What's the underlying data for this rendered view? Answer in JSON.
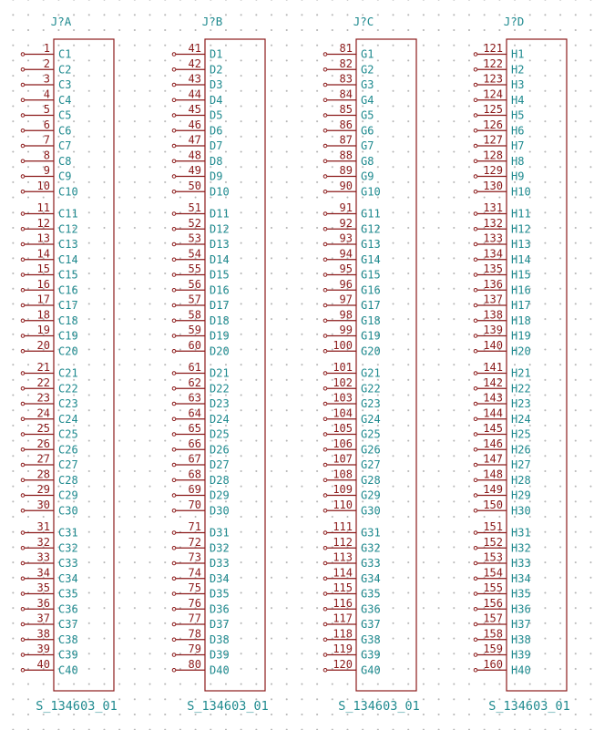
{
  "connectors": [
    {
      "reference": "J?A",
      "value": "S_134603_01",
      "pins": [
        {
          "num": "1",
          "name": "C1"
        },
        {
          "num": "2",
          "name": "C2"
        },
        {
          "num": "3",
          "name": "C3"
        },
        {
          "num": "4",
          "name": "C4"
        },
        {
          "num": "5",
          "name": "C5"
        },
        {
          "num": "6",
          "name": "C6"
        },
        {
          "num": "7",
          "name": "C7"
        },
        {
          "num": "8",
          "name": "C8"
        },
        {
          "num": "9",
          "name": "C9"
        },
        {
          "num": "10",
          "name": "C10"
        },
        {
          "num": "11",
          "name": "C11"
        },
        {
          "num": "12",
          "name": "C12"
        },
        {
          "num": "13",
          "name": "C13"
        },
        {
          "num": "14",
          "name": "C14"
        },
        {
          "num": "15",
          "name": "C15"
        },
        {
          "num": "16",
          "name": "C16"
        },
        {
          "num": "17",
          "name": "C17"
        },
        {
          "num": "18",
          "name": "C18"
        },
        {
          "num": "19",
          "name": "C19"
        },
        {
          "num": "20",
          "name": "C20"
        },
        {
          "num": "21",
          "name": "C21"
        },
        {
          "num": "22",
          "name": "C22"
        },
        {
          "num": "23",
          "name": "C23"
        },
        {
          "num": "24",
          "name": "C24"
        },
        {
          "num": "25",
          "name": "C25"
        },
        {
          "num": "26",
          "name": "C26"
        },
        {
          "num": "27",
          "name": "C27"
        },
        {
          "num": "28",
          "name": "C28"
        },
        {
          "num": "29",
          "name": "C29"
        },
        {
          "num": "30",
          "name": "C30"
        },
        {
          "num": "31",
          "name": "C31"
        },
        {
          "num": "32",
          "name": "C32"
        },
        {
          "num": "33",
          "name": "C33"
        },
        {
          "num": "34",
          "name": "C34"
        },
        {
          "num": "35",
          "name": "C35"
        },
        {
          "num": "36",
          "name": "C36"
        },
        {
          "num": "37",
          "name": "C37"
        },
        {
          "num": "38",
          "name": "C38"
        },
        {
          "num": "39",
          "name": "C39"
        },
        {
          "num": "40",
          "name": "C40"
        }
      ]
    },
    {
      "reference": "J?B",
      "value": "S_134603_01",
      "pins": [
        {
          "num": "41",
          "name": "D1"
        },
        {
          "num": "42",
          "name": "D2"
        },
        {
          "num": "43",
          "name": "D3"
        },
        {
          "num": "44",
          "name": "D4"
        },
        {
          "num": "45",
          "name": "D5"
        },
        {
          "num": "46",
          "name": "D6"
        },
        {
          "num": "47",
          "name": "D7"
        },
        {
          "num": "48",
          "name": "D8"
        },
        {
          "num": "49",
          "name": "D9"
        },
        {
          "num": "50",
          "name": "D10"
        },
        {
          "num": "51",
          "name": "D11"
        },
        {
          "num": "52",
          "name": "D12"
        },
        {
          "num": "53",
          "name": "D13"
        },
        {
          "num": "54",
          "name": "D14"
        },
        {
          "num": "55",
          "name": "D15"
        },
        {
          "num": "56",
          "name": "D16"
        },
        {
          "num": "57",
          "name": "D17"
        },
        {
          "num": "58",
          "name": "D18"
        },
        {
          "num": "59",
          "name": "D19"
        },
        {
          "num": "60",
          "name": "D20"
        },
        {
          "num": "61",
          "name": "D21"
        },
        {
          "num": "62",
          "name": "D22"
        },
        {
          "num": "63",
          "name": "D23"
        },
        {
          "num": "64",
          "name": "D24"
        },
        {
          "num": "65",
          "name": "D25"
        },
        {
          "num": "66",
          "name": "D26"
        },
        {
          "num": "67",
          "name": "D27"
        },
        {
          "num": "68",
          "name": "D28"
        },
        {
          "num": "69",
          "name": "D29"
        },
        {
          "num": "70",
          "name": "D30"
        },
        {
          "num": "71",
          "name": "D31"
        },
        {
          "num": "72",
          "name": "D32"
        },
        {
          "num": "73",
          "name": "D33"
        },
        {
          "num": "74",
          "name": "D34"
        },
        {
          "num": "75",
          "name": "D35"
        },
        {
          "num": "76",
          "name": "D36"
        },
        {
          "num": "77",
          "name": "D37"
        },
        {
          "num": "78",
          "name": "D38"
        },
        {
          "num": "79",
          "name": "D39"
        },
        {
          "num": "80",
          "name": "D40"
        }
      ]
    },
    {
      "reference": "J?C",
      "value": "S_134603_01",
      "pins": [
        {
          "num": "81",
          "name": "G1"
        },
        {
          "num": "82",
          "name": "G2"
        },
        {
          "num": "83",
          "name": "G3"
        },
        {
          "num": "84",
          "name": "G4"
        },
        {
          "num": "85",
          "name": "G5"
        },
        {
          "num": "86",
          "name": "G6"
        },
        {
          "num": "87",
          "name": "G7"
        },
        {
          "num": "88",
          "name": "G8"
        },
        {
          "num": "89",
          "name": "G9"
        },
        {
          "num": "90",
          "name": "G10"
        },
        {
          "num": "91",
          "name": "G11"
        },
        {
          "num": "92",
          "name": "G12"
        },
        {
          "num": "93",
          "name": "G13"
        },
        {
          "num": "94",
          "name": "G14"
        },
        {
          "num": "95",
          "name": "G15"
        },
        {
          "num": "96",
          "name": "G16"
        },
        {
          "num": "97",
          "name": "G17"
        },
        {
          "num": "98",
          "name": "G18"
        },
        {
          "num": "99",
          "name": "G19"
        },
        {
          "num": "100",
          "name": "G20"
        },
        {
          "num": "101",
          "name": "G21"
        },
        {
          "num": "102",
          "name": "G22"
        },
        {
          "num": "103",
          "name": "G23"
        },
        {
          "num": "104",
          "name": "G24"
        },
        {
          "num": "105",
          "name": "G25"
        },
        {
          "num": "106",
          "name": "G26"
        },
        {
          "num": "107",
          "name": "G27"
        },
        {
          "num": "108",
          "name": "G28"
        },
        {
          "num": "109",
          "name": "G29"
        },
        {
          "num": "110",
          "name": "G30"
        },
        {
          "num": "111",
          "name": "G31"
        },
        {
          "num": "112",
          "name": "G32"
        },
        {
          "num": "113",
          "name": "G33"
        },
        {
          "num": "114",
          "name": "G34"
        },
        {
          "num": "115",
          "name": "G35"
        },
        {
          "num": "116",
          "name": "G36"
        },
        {
          "num": "117",
          "name": "G37"
        },
        {
          "num": "118",
          "name": "G38"
        },
        {
          "num": "119",
          "name": "G39"
        },
        {
          "num": "120",
          "name": "G40"
        }
      ]
    },
    {
      "reference": "J?D",
      "value": "S_134603_01",
      "pins": [
        {
          "num": "121",
          "name": "H1"
        },
        {
          "num": "122",
          "name": "H2"
        },
        {
          "num": "123",
          "name": "H3"
        },
        {
          "num": "124",
          "name": "H4"
        },
        {
          "num": "125",
          "name": "H5"
        },
        {
          "num": "126",
          "name": "H6"
        },
        {
          "num": "127",
          "name": "H7"
        },
        {
          "num": "128",
          "name": "H8"
        },
        {
          "num": "129",
          "name": "H9"
        },
        {
          "num": "130",
          "name": "H10"
        },
        {
          "num": "131",
          "name": "H11"
        },
        {
          "num": "132",
          "name": "H12"
        },
        {
          "num": "133",
          "name": "H13"
        },
        {
          "num": "134",
          "name": "H14"
        },
        {
          "num": "135",
          "name": "H15"
        },
        {
          "num": "136",
          "name": "H16"
        },
        {
          "num": "137",
          "name": "H17"
        },
        {
          "num": "138",
          "name": "H18"
        },
        {
          "num": "139",
          "name": "H19"
        },
        {
          "num": "140",
          "name": "H20"
        },
        {
          "num": "141",
          "name": "H21"
        },
        {
          "num": "142",
          "name": "H22"
        },
        {
          "num": "143",
          "name": "H23"
        },
        {
          "num": "144",
          "name": "H24"
        },
        {
          "num": "145",
          "name": "H25"
        },
        {
          "num": "146",
          "name": "H26"
        },
        {
          "num": "147",
          "name": "H27"
        },
        {
          "num": "148",
          "name": "H28"
        },
        {
          "num": "149",
          "name": "H29"
        },
        {
          "num": "150",
          "name": "H30"
        },
        {
          "num": "151",
          "name": "H31"
        },
        {
          "num": "152",
          "name": "H32"
        },
        {
          "num": "153",
          "name": "H33"
        },
        {
          "num": "154",
          "name": "H34"
        },
        {
          "num": "155",
          "name": "H35"
        },
        {
          "num": "156",
          "name": "H36"
        },
        {
          "num": "157",
          "name": "H37"
        },
        {
          "num": "158",
          "name": "H38"
        },
        {
          "num": "159",
          "name": "H39"
        },
        {
          "num": "160",
          "name": "H40"
        }
      ]
    }
  ],
  "colors": {
    "symbol_body": "#8b1a1a",
    "field_text": "#1f8a8f",
    "grid_dot": "#b4b4b4",
    "background": "#ffffff"
  }
}
